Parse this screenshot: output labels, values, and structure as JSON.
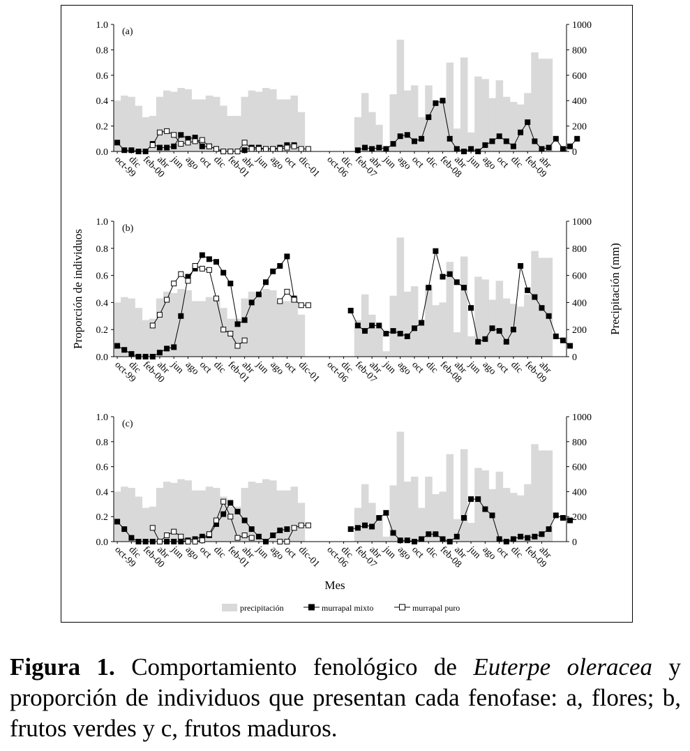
{
  "caption": {
    "label": "Figura 1.",
    "text_before": " Comportamiento fenológico de ",
    "species": "Euterpe oleracea",
    "text_after": " y proporción de individuos que presentan cada fenofase: a, flores; b, frutos verdes y c, frutos maduros."
  },
  "legend": {
    "precip": "precipitación",
    "mixto": "murrapal mixto",
    "puro": "murrapal puro"
  },
  "colors": {
    "precip_bar": "#d9d9d9",
    "line": "#000000",
    "marker_filled": "#000000",
    "marker_open": "#ffffff"
  },
  "chart_data": [
    {
      "type": "bar+line",
      "panel_label": "(a)",
      "ylim_left": [
        0,
        1.0
      ],
      "ylim_right": [
        0,
        1000
      ],
      "y_ticks_left": [
        "0.0",
        "0.2",
        "0.4",
        "0.6",
        "0.8",
        "1.0"
      ],
      "y_ticks_right": [
        "0",
        "200",
        "400",
        "600",
        "800",
        "1000"
      ],
      "x_tick_labels": [
        "oct-99",
        "dic",
        "feb-00",
        "abr",
        "jun",
        "ago",
        "oct",
        "dic",
        "feb-01",
        "abr",
        "jun",
        "ago",
        "oct",
        "dic-01",
        "",
        "oct-06",
        "dic",
        "feb-07",
        "abr",
        "jun",
        "ago",
        "oct",
        "dic",
        "feb-08",
        "abr",
        "jun",
        "ago",
        "oct",
        "dic",
        "feb-09",
        "abr"
      ],
      "precipitation": [
        400,
        440,
        430,
        360,
        270,
        280,
        430,
        480,
        470,
        500,
        490,
        410,
        410,
        440,
        430,
        360,
        280,
        280,
        430,
        480,
        470,
        500,
        490,
        410,
        410,
        440,
        310,
        null,
        null,
        null,
        null,
        null,
        null,
        null,
        270,
        460,
        310,
        210,
        40,
        450,
        880,
        480,
        520,
        270,
        520,
        380,
        400,
        700,
        180,
        740,
        150,
        590,
        570,
        420,
        560,
        430,
        390,
        370,
        460,
        780,
        730,
        730,
        0,
        0
      ],
      "series": [
        {
          "name": "murrapal mixto",
          "values": [
            0.07,
            0.01,
            0.01,
            0,
            0,
            0.06,
            0.03,
            0.03,
            0.04,
            0.13,
            0.1,
            0.11,
            0.04,
            0.04,
            0.02,
            0,
            0,
            0,
            0.01,
            0.03,
            0.03,
            0.02,
            0.02,
            0.03,
            0.05,
            0.05,
            null,
            null,
            null,
            null,
            null,
            null,
            null,
            null,
            0.01,
            0.03,
            0.02,
            0.03,
            0.02,
            0.06,
            0.12,
            0.13,
            0.08,
            0.1,
            0.27,
            0.38,
            0.4,
            0.1,
            0.02,
            0,
            0.02,
            0,
            0.05,
            0.08,
            0.12,
            0.08,
            0.04,
            0.15,
            0.23,
            0.08,
            0.02,
            0.03,
            0.1,
            0.02,
            0.04,
            0.1
          ]
        },
        {
          "name": "murrapal puro",
          "values": [
            null,
            null,
            null,
            null,
            null,
            0.05,
            0.15,
            0.16,
            0.13,
            0.06,
            0.07,
            0.08,
            0.09,
            0.04,
            0.02,
            0,
            0,
            0,
            0.07,
            0.02,
            0.02,
            0.02,
            0.02,
            0.02,
            0.03,
            0.04,
            0.02,
            0.02
          ]
        }
      ]
    },
    {
      "type": "bar+line",
      "panel_label": "(b)",
      "ylabel": "Proporción de individuos",
      "ylabel_right": "Precipitación (mm)",
      "ylim_left": [
        0,
        1.0
      ],
      "ylim_right": [
        0,
        1000
      ],
      "y_ticks_left": [
        "0.0",
        "0.2",
        "0.4",
        "0.6",
        "0.8",
        "1.0"
      ],
      "y_ticks_right": [
        "0",
        "200",
        "400",
        "600",
        "800",
        "1000"
      ],
      "x_tick_labels": [
        "oct-99",
        "dic",
        "feb-00",
        "abr",
        "jun",
        "ago",
        "oct",
        "dic",
        "feb-01",
        "abr",
        "jun",
        "ago",
        "oct",
        "dic-01",
        "",
        "oct-06",
        "dic",
        "feb-07",
        "abr",
        "jun",
        "ago",
        "oct",
        "dic",
        "feb-08",
        "abr",
        "jun",
        "ago",
        "oct",
        "dic",
        "feb-09",
        "abr"
      ],
      "precipitation": [
        400,
        440,
        430,
        360,
        270,
        280,
        430,
        480,
        470,
        500,
        490,
        410,
        410,
        440,
        430,
        360,
        280,
        280,
        430,
        480,
        470,
        500,
        490,
        410,
        410,
        440,
        310,
        null,
        null,
        null,
        null,
        null,
        null,
        null,
        270,
        460,
        310,
        210,
        40,
        450,
        880,
        480,
        520,
        270,
        520,
        380,
        400,
        700,
        180,
        740,
        150,
        590,
        570,
        420,
        560,
        430,
        390,
        370,
        460,
        780,
        730,
        730,
        0,
        0
      ],
      "series": [
        {
          "name": "murrapal mixto",
          "values": [
            0.08,
            0.05,
            0.02,
            0,
            0,
            0,
            0.03,
            0.06,
            0.07,
            0.3,
            0.59,
            0.65,
            0.75,
            0.72,
            0.7,
            0.62,
            0.54,
            0.24,
            0.27,
            0.4,
            0.46,
            0.55,
            0.63,
            0.67,
            0.74,
            0.43,
            null,
            null,
            null,
            null,
            null,
            null,
            null,
            0.34,
            0.23,
            0.19,
            0.23,
            0.23,
            0.17,
            0.19,
            0.17,
            0.15,
            0.21,
            0.25,
            0.51,
            0.78,
            0.59,
            0.61,
            0.55,
            0.51,
            0.36,
            0.11,
            0.13,
            0.21,
            0.19,
            0.11,
            0.2,
            0.67,
            0.49,
            0.44,
            0.36,
            0.3,
            0.15,
            0.12,
            0.08
          ]
        },
        {
          "name": "murrapal puro",
          "values": [
            null,
            null,
            null,
            null,
            null,
            0.23,
            0.31,
            0.42,
            0.54,
            0.61,
            0.56,
            0.67,
            0.65,
            0.64,
            0.43,
            0.2,
            0.17,
            0.08,
            0.12,
            null,
            null,
            null,
            null,
            0.41,
            0.48,
            0.42,
            0.38,
            0.38
          ]
        }
      ]
    },
    {
      "type": "bar+line",
      "panel_label": "(c)",
      "xlabel": "Mes",
      "ylim_left": [
        0,
        1.0
      ],
      "ylim_right": [
        0,
        1000
      ],
      "y_ticks_left": [
        "0.0",
        "0.2",
        "0.4",
        "0.6",
        "0.8",
        "1.0"
      ],
      "y_ticks_right": [
        "0",
        "200",
        "400",
        "600",
        "800",
        "1000"
      ],
      "x_tick_labels": [
        "oct-99",
        "dic",
        "feb-00",
        "abr",
        "jun",
        "ago",
        "oct",
        "dic",
        "feb-01",
        "abr",
        "jun",
        "ago",
        "oct",
        "dic-01",
        "",
        "oct-06",
        "dic",
        "feb-07",
        "abr",
        "jun",
        "ago",
        "oct",
        "dic",
        "feb-08",
        "abr",
        "jun",
        "ago",
        "oct",
        "dic",
        "feb-09",
        "abr"
      ],
      "precipitation": [
        400,
        440,
        430,
        360,
        270,
        280,
        430,
        480,
        470,
        500,
        490,
        410,
        410,
        440,
        430,
        360,
        280,
        280,
        430,
        480,
        470,
        500,
        490,
        410,
        410,
        440,
        310,
        null,
        null,
        null,
        null,
        null,
        null,
        null,
        270,
        460,
        310,
        210,
        40,
        450,
        880,
        480,
        520,
        270,
        520,
        380,
        400,
        700,
        180,
        740,
        150,
        590,
        570,
        420,
        560,
        430,
        390,
        370,
        460,
        780,
        730,
        730,
        0,
        0
      ],
      "series": [
        {
          "name": "murrapal mixto",
          "values": [
            0.16,
            0.1,
            0.03,
            0,
            0,
            0,
            0,
            0,
            0,
            0,
            0.01,
            0.02,
            0.04,
            0.05,
            0.14,
            0.22,
            0.31,
            0.24,
            0.17,
            0.1,
            0.04,
            0,
            0.05,
            0.09,
            0.1,
            null,
            null,
            null,
            null,
            null,
            null,
            null,
            null,
            0.1,
            0.11,
            0.13,
            0.12,
            0.19,
            0.23,
            0.07,
            0.01,
            0.01,
            0,
            0.02,
            0.06,
            0.06,
            0.02,
            0,
            0.04,
            0.19,
            0.34,
            0.34,
            0.26,
            0.21,
            0.02,
            0,
            0.02,
            0.04,
            0.03,
            0.04,
            0.06,
            0.1,
            0.21,
            0.19,
            0.17
          ]
        },
        {
          "name": "murrapal puro",
          "values": [
            null,
            null,
            null,
            null,
            null,
            0.11,
            0,
            0.05,
            0.08,
            0.04,
            0,
            0,
            0.01,
            0.06,
            0.17,
            0.32,
            0.2,
            0.03,
            0.05,
            0.03,
            null,
            null,
            null,
            0,
            0,
            0.11,
            0.13,
            0.13
          ]
        }
      ]
    }
  ]
}
